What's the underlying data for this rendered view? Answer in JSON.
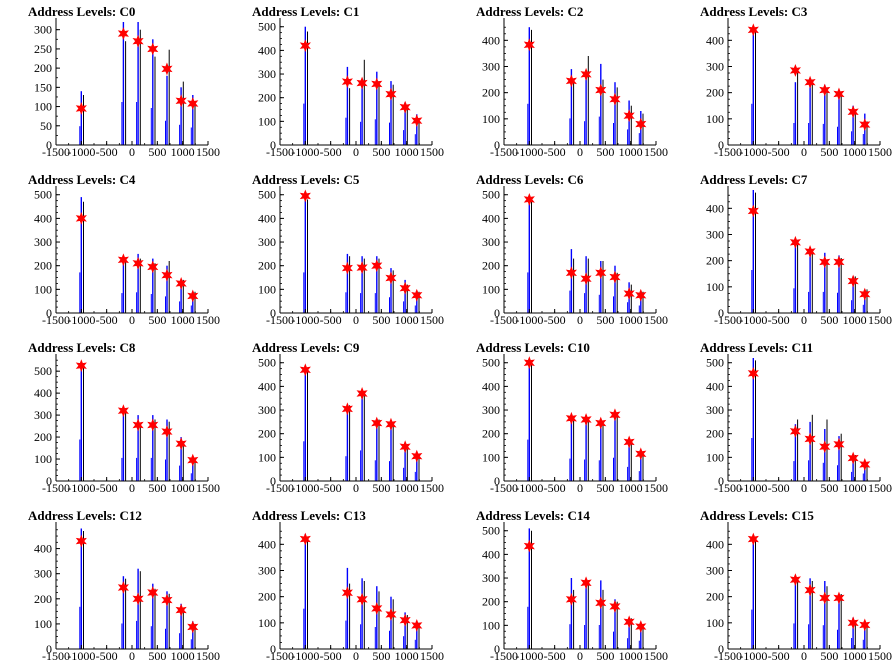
{
  "colors": {
    "frame": "#000000",
    "hist_blue": "#0000ff",
    "hist_black": "#000000",
    "marker": "#ff0000"
  },
  "chart_data": [
    {
      "type": "bar",
      "title": "Address Levels: C0",
      "xlim": [
        -1500,
        1500
      ],
      "ylim": [
        0,
        320
      ],
      "yticks": [
        0,
        50,
        100,
        150,
        200,
        250,
        300
      ],
      "xticks": [
        "-1500",
        "-1000",
        "-500",
        "0",
        "500",
        "1000",
        "1500"
      ],
      "peaks": [
        {
          "x": -1000,
          "y": 95
        },
        {
          "x": -170,
          "y": 290
        },
        {
          "x": 120,
          "y": 270
        },
        {
          "x": 410,
          "y": 250
        },
        {
          "x": 690,
          "y": 198
        },
        {
          "x": 970,
          "y": 115
        },
        {
          "x": 1200,
          "y": 108
        }
      ],
      "blue_heights": [
        140,
        320,
        320,
        275,
        180,
        150,
        130
      ],
      "black_heights": [
        130,
        270,
        300,
        230,
        248,
        165,
        110
      ]
    },
    {
      "type": "bar",
      "title": "Address Levels: C1",
      "xlim": [
        -1500,
        1500
      ],
      "ylim": [
        0,
        520
      ],
      "yticks": [
        0,
        100,
        200,
        300,
        400,
        500
      ],
      "xticks": [
        "-1500",
        "-1000",
        "-500",
        "0",
        "500",
        "1000",
        "1500"
      ],
      "peaks": [
        {
          "x": -1000,
          "y": 420
        },
        {
          "x": -170,
          "y": 268
        },
        {
          "x": 120,
          "y": 262
        },
        {
          "x": 410,
          "y": 258
        },
        {
          "x": 690,
          "y": 215
        },
        {
          "x": 970,
          "y": 160
        },
        {
          "x": 1200,
          "y": 103
        }
      ],
      "blue_heights": [
        500,
        330,
        280,
        310,
        270,
        180,
        130
      ],
      "black_heights": [
        480,
        240,
        360,
        270,
        255,
        170,
        110
      ]
    },
    {
      "type": "bar",
      "title": "Address Levels: C2",
      "xlim": [
        -1500,
        1500
      ],
      "ylim": [
        0,
        470
      ],
      "yticks": [
        0,
        100,
        200,
        300,
        400
      ],
      "xticks": [
        "-1500",
        "-1000",
        "-500",
        "0",
        "500",
        "1000",
        "1500"
      ],
      "peaks": [
        {
          "x": -1000,
          "y": 383
        },
        {
          "x": -170,
          "y": 245
        },
        {
          "x": 120,
          "y": 270
        },
        {
          "x": 410,
          "y": 210
        },
        {
          "x": 690,
          "y": 175
        },
        {
          "x": 970,
          "y": 112
        },
        {
          "x": 1200,
          "y": 80
        }
      ],
      "blue_heights": [
        450,
        290,
        260,
        310,
        240,
        170,
        130
      ],
      "black_heights": [
        440,
        250,
        340,
        250,
        220,
        150,
        120
      ]
    },
    {
      "type": "bar",
      "title": "Address Levels: C3",
      "xlim": [
        -1500,
        1500
      ],
      "ylim": [
        0,
        470
      ],
      "yticks": [
        0,
        100,
        200,
        300,
        400
      ],
      "xticks": [
        "-1500",
        "-1000",
        "-500",
        "0",
        "500",
        "1000",
        "1500"
      ],
      "peaks": [
        {
          "x": -1000,
          "y": 440
        },
        {
          "x": -170,
          "y": 285
        },
        {
          "x": 120,
          "y": 240
        },
        {
          "x": 410,
          "y": 210
        },
        {
          "x": 690,
          "y": 195
        },
        {
          "x": 970,
          "y": 127
        },
        {
          "x": 1200,
          "y": 78
        }
      ],
      "blue_heights": [
        450,
        240,
        240,
        230,
        200,
        150,
        120
      ],
      "black_heights": [
        440,
        280,
        250,
        220,
        200,
        130,
        90
      ]
    },
    {
      "type": "bar",
      "title": "Address Levels: C4",
      "xlim": [
        -1500,
        1500
      ],
      "ylim": [
        0,
        520
      ],
      "yticks": [
        0,
        100,
        200,
        300,
        400,
        500
      ],
      "xticks": [
        "-1500",
        "-1000",
        "-500",
        "0",
        "500",
        "1000",
        "1500"
      ],
      "peaks": [
        {
          "x": -1000,
          "y": 400
        },
        {
          "x": -170,
          "y": 225
        },
        {
          "x": 120,
          "y": 210
        },
        {
          "x": 410,
          "y": 195
        },
        {
          "x": 690,
          "y": 160
        },
        {
          "x": 970,
          "y": 125
        },
        {
          "x": 1200,
          "y": 72
        }
      ],
      "blue_heights": [
        490,
        240,
        250,
        230,
        200,
        140,
        90
      ],
      "black_heights": [
        470,
        230,
        230,
        210,
        220,
        140,
        90
      ]
    },
    {
      "type": "bar",
      "title": "Address Levels: C5",
      "xlim": [
        -1500,
        1500
      ],
      "ylim": [
        0,
        520
      ],
      "yticks": [
        0,
        100,
        200,
        300,
        400,
        500
      ],
      "xticks": [
        "-1500",
        "-1000",
        "-500",
        "0",
        "500",
        "1000",
        "1500"
      ],
      "peaks": [
        {
          "x": -1000,
          "y": 495
        },
        {
          "x": -170,
          "y": 190
        },
        {
          "x": 120,
          "y": 192
        },
        {
          "x": 410,
          "y": 200
        },
        {
          "x": 690,
          "y": 148
        },
        {
          "x": 970,
          "y": 105
        },
        {
          "x": 1200,
          "y": 75
        }
      ],
      "blue_heights": [
        490,
        250,
        240,
        240,
        190,
        140,
        90
      ],
      "black_heights": [
        480,
        240,
        230,
        230,
        180,
        120,
        90
      ]
    },
    {
      "type": "bar",
      "title": "Address Levels: C6",
      "xlim": [
        -1500,
        1500
      ],
      "ylim": [
        0,
        520
      ],
      "yticks": [
        0,
        100,
        200,
        300,
        400,
        500
      ],
      "xticks": [
        "-1500",
        "-1000",
        "-500",
        "0",
        "500",
        "1000",
        "1500"
      ],
      "peaks": [
        {
          "x": -1000,
          "y": 480
        },
        {
          "x": -170,
          "y": 170
        },
        {
          "x": 120,
          "y": 145
        },
        {
          "x": 410,
          "y": 170
        },
        {
          "x": 690,
          "y": 152
        },
        {
          "x": 970,
          "y": 82
        },
        {
          "x": 1200,
          "y": 75
        }
      ],
      "blue_heights": [
        490,
        270,
        240,
        220,
        200,
        130,
        90
      ],
      "black_heights": [
        480,
        230,
        230,
        220,
        170,
        120,
        90
      ]
    },
    {
      "type": "bar",
      "title": "Address Levels: C7",
      "xlim": [
        -1500,
        1500
      ],
      "ylim": [
        0,
        470
      ],
      "yticks": [
        0,
        100,
        200,
        300,
        400
      ],
      "xticks": [
        "-1500",
        "-1000",
        "-500",
        "0",
        "500",
        "1000",
        "1500"
      ],
      "peaks": [
        {
          "x": -1000,
          "y": 390
        },
        {
          "x": -170,
          "y": 270
        },
        {
          "x": 120,
          "y": 235
        },
        {
          "x": 410,
          "y": 195
        },
        {
          "x": 690,
          "y": 195
        },
        {
          "x": 970,
          "y": 122
        },
        {
          "x": 1200,
          "y": 72
        }
      ],
      "blue_heights": [
        470,
        270,
        230,
        230,
        220,
        140,
        90
      ],
      "black_heights": [
        460,
        260,
        240,
        200,
        210,
        140,
        90
      ]
    },
    {
      "type": "bar",
      "title": "Address Levels: C8",
      "xlim": [
        -1500,
        1500
      ],
      "ylim": [
        0,
        560
      ],
      "yticks": [
        0,
        100,
        200,
        300,
        400,
        500
      ],
      "xticks": [
        "-1500",
        "-1000",
        "-500",
        "0",
        "500",
        "1000",
        "1500"
      ],
      "peaks": [
        {
          "x": -1000,
          "y": 525
        },
        {
          "x": -170,
          "y": 320
        },
        {
          "x": 120,
          "y": 255
        },
        {
          "x": 410,
          "y": 255
        },
        {
          "x": 690,
          "y": 225
        },
        {
          "x": 970,
          "y": 170
        },
        {
          "x": 1200,
          "y": 95
        }
      ],
      "blue_heights": [
        540,
        300,
        300,
        300,
        280,
        200,
        100
      ],
      "black_heights": [
        520,
        330,
        260,
        280,
        270,
        180,
        100
      ]
    },
    {
      "type": "bar",
      "title": "Address Levels: C9",
      "xlim": [
        -1500,
        1500
      ],
      "ylim": [
        0,
        520
      ],
      "yticks": [
        0,
        100,
        200,
        300,
        400,
        500
      ],
      "xticks": [
        "-1500",
        "-1000",
        "-500",
        "0",
        "500",
        "1000",
        "1500"
      ],
      "peaks": [
        {
          "x": -1000,
          "y": 470
        },
        {
          "x": -170,
          "y": 305
        },
        {
          "x": 120,
          "y": 370
        },
        {
          "x": 410,
          "y": 245
        },
        {
          "x": 690,
          "y": 240
        },
        {
          "x": 970,
          "y": 145
        },
        {
          "x": 1200,
          "y": 105
        }
      ],
      "blue_heights": [
        480,
        300,
        370,
        250,
        240,
        160,
        110
      ],
      "black_heights": [
        470,
        320,
        380,
        260,
        240,
        150,
        110
      ]
    },
    {
      "type": "bar",
      "title": "Address Levels: C10",
      "xlim": [
        -1500,
        1500
      ],
      "ylim": [
        0,
        520
      ],
      "yticks": [
        0,
        100,
        200,
        300,
        400,
        500
      ],
      "xticks": [
        "-1500",
        "-1000",
        "-500",
        "0",
        "500",
        "1000",
        "1500"
      ],
      "peaks": [
        {
          "x": -1000,
          "y": 500
        },
        {
          "x": -170,
          "y": 265
        },
        {
          "x": 120,
          "y": 260
        },
        {
          "x": 410,
          "y": 245
        },
        {
          "x": 690,
          "y": 280
        },
        {
          "x": 970,
          "y": 165
        },
        {
          "x": 1200,
          "y": 115
        }
      ],
      "blue_heights": [
        500,
        270,
        260,
        250,
        280,
        170,
        120
      ],
      "black_heights": [
        490,
        260,
        270,
        240,
        270,
        160,
        110
      ]
    },
    {
      "type": "bar",
      "title": "Address Levels: C11",
      "xlim": [
        -1500,
        1500
      ],
      "ylim": [
        0,
        520
      ],
      "yticks": [
        0,
        100,
        200,
        300,
        400,
        500
      ],
      "xticks": [
        "-1500",
        "-1000",
        "-500",
        "0",
        "500",
        "1000",
        "1500"
      ],
      "peaks": [
        {
          "x": -1000,
          "y": 455
        },
        {
          "x": -170,
          "y": 210
        },
        {
          "x": 120,
          "y": 178
        },
        {
          "x": 410,
          "y": 145
        },
        {
          "x": 690,
          "y": 155
        },
        {
          "x": 970,
          "y": 97
        },
        {
          "x": 1200,
          "y": 70
        }
      ],
      "blue_heights": [
        520,
        240,
        250,
        220,
        190,
        110,
        90
      ],
      "black_heights": [
        510,
        260,
        280,
        260,
        200,
        110,
        80
      ]
    },
    {
      "type": "bar",
      "title": "Address Levels: C12",
      "xlim": [
        -1500,
        1500
      ],
      "ylim": [
        0,
        490
      ],
      "yticks": [
        0,
        100,
        200,
        300,
        400
      ],
      "xticks": [
        "-1500",
        "-1000",
        "-500",
        "0",
        "500",
        "1000",
        "1500"
      ],
      "peaks": [
        {
          "x": -1000,
          "y": 430
        },
        {
          "x": -170,
          "y": 245
        },
        {
          "x": 120,
          "y": 200
        },
        {
          "x": 410,
          "y": 225
        },
        {
          "x": 690,
          "y": 195
        },
        {
          "x": 970,
          "y": 155
        },
        {
          "x": 1200,
          "y": 88
        }
      ],
      "blue_heights": [
        480,
        290,
        320,
        260,
        230,
        180,
        110
      ],
      "black_heights": [
        470,
        280,
        310,
        240,
        220,
        160,
        100
      ]
    },
    {
      "type": "bar",
      "title": "Address Levels: C13",
      "xlim": [
        -1500,
        1500
      ],
      "ylim": [
        0,
        470
      ],
      "yticks": [
        0,
        100,
        200,
        300,
        400
      ],
      "xticks": [
        "-1500",
        "-1000",
        "-500",
        "0",
        "500",
        "1000",
        "1500"
      ],
      "peaks": [
        {
          "x": -1000,
          "y": 420
        },
        {
          "x": -170,
          "y": 215
        },
        {
          "x": 120,
          "y": 190
        },
        {
          "x": 410,
          "y": 155
        },
        {
          "x": 690,
          "y": 132
        },
        {
          "x": 970,
          "y": 110
        },
        {
          "x": 1200,
          "y": 90
        }
      ],
      "blue_heights": [
        440,
        310,
        270,
        240,
        200,
        140,
        100
      ],
      "black_heights": [
        430,
        250,
        260,
        220,
        190,
        130,
        100
      ]
    },
    {
      "type": "bar",
      "title": "Address Levels: C14",
      "xlim": [
        -1500,
        1500
      ],
      "ylim": [
        0,
        520
      ],
      "yticks": [
        0,
        100,
        200,
        300,
        400,
        500
      ],
      "xticks": [
        "-1500",
        "-1000",
        "-500",
        "0",
        "500",
        "1000",
        "1500"
      ],
      "peaks": [
        {
          "x": -1000,
          "y": 435
        },
        {
          "x": -170,
          "y": 210
        },
        {
          "x": 120,
          "y": 280
        },
        {
          "x": 410,
          "y": 195
        },
        {
          "x": 690,
          "y": 180
        },
        {
          "x": 970,
          "y": 115
        },
        {
          "x": 1200,
          "y": 95
        }
      ],
      "blue_heights": [
        510,
        300,
        290,
        290,
        210,
        130,
        100
      ],
      "black_heights": [
        500,
        250,
        290,
        250,
        200,
        130,
        100
      ]
    },
    {
      "type": "bar",
      "title": "Address Levels: C15",
      "xlim": [
        -1500,
        1500
      ],
      "ylim": [
        0,
        470
      ],
      "yticks": [
        0,
        100,
        200,
        300,
        400
      ],
      "xticks": [
        "-1500",
        "-1000",
        "-500",
        "0",
        "500",
        "1000",
        "1500"
      ],
      "peaks": [
        {
          "x": -1000,
          "y": 420
        },
        {
          "x": -170,
          "y": 265
        },
        {
          "x": 120,
          "y": 225
        },
        {
          "x": 410,
          "y": 195
        },
        {
          "x": 690,
          "y": 195
        },
        {
          "x": 970,
          "y": 100
        },
        {
          "x": 1200,
          "y": 92
        }
      ],
      "blue_heights": [
        430,
        280,
        270,
        260,
        210,
        120,
        100
      ],
      "black_heights": [
        420,
        260,
        260,
        240,
        210,
        110,
        90
      ]
    }
  ]
}
